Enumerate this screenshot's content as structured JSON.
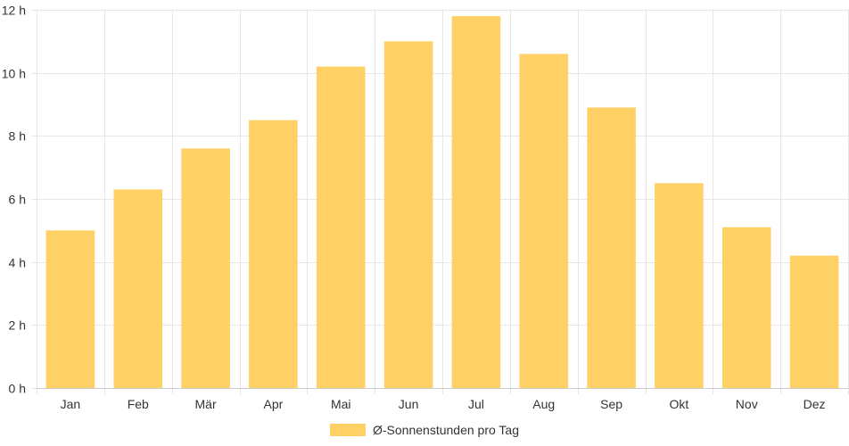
{
  "chart_data": {
    "type": "bar",
    "categories": [
      "Jan",
      "Feb",
      "Mär",
      "Apr",
      "Mai",
      "Jun",
      "Jul",
      "Aug",
      "Sep",
      "Okt",
      "Nov",
      "Dez"
    ],
    "series": [
      {
        "name": "Ø-Sonnenstunden pro Tag",
        "values": [
          5.0,
          6.3,
          7.6,
          8.5,
          10.2,
          11.0,
          11.8,
          10.6,
          8.9,
          6.5,
          5.1,
          4.2
        ]
      }
    ],
    "ylim": [
      0,
      12
    ],
    "yticks": [
      0,
      2,
      4,
      6,
      8,
      10,
      12
    ],
    "y_unit_suffix": " h",
    "grid": true,
    "legend_position": "bottom",
    "colors": {
      "bar": "#fed066",
      "grid": "#e6e6e6",
      "axis": "#cccccc"
    }
  }
}
